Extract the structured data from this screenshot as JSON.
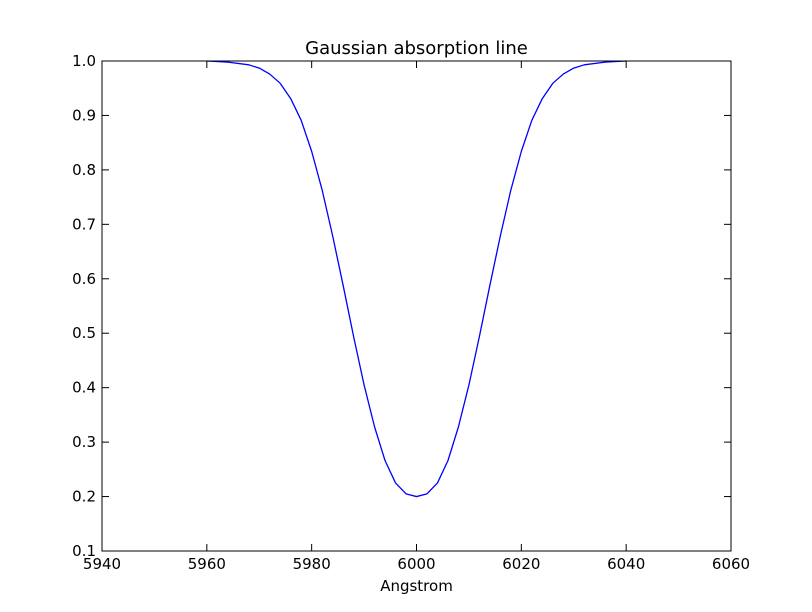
{
  "chart_data": {
    "type": "line",
    "title": "Gaussian absorption line",
    "xlabel": "Angstrom",
    "ylabel": "",
    "xlim": [
      5940,
      6060
    ],
    "ylim": [
      0.1,
      1.0
    ],
    "x_ticks": [
      5940,
      5960,
      5980,
      6000,
      6020,
      6040,
      6060
    ],
    "y_ticks": [
      0.1,
      0.2,
      0.3,
      0.4,
      0.5,
      0.6,
      0.7,
      0.8,
      0.9,
      1.0
    ],
    "x_tick_labels": [
      "5940",
      "5960",
      "5980",
      "6000",
      "6020",
      "6040",
      "6060"
    ],
    "y_tick_labels": [
      "0.1",
      "0.2",
      "0.3",
      "0.4",
      "0.5",
      "0.6",
      "0.7",
      "0.8",
      "0.9",
      "1.0"
    ],
    "grid": false,
    "line_color": "#0000ff",
    "series": [
      {
        "x": [
          5960,
          5964,
          5968,
          5970,
          5972,
          5974,
          5976,
          5978,
          5980,
          5982,
          5984,
          5986,
          5988,
          5990,
          5992,
          5994,
          5996,
          5998,
          6000,
          6002,
          6004,
          6006,
          6008,
          6010,
          6012,
          6014,
          6016,
          6018,
          6020,
          6022,
          6024,
          6026,
          6028,
          6030,
          6032,
          6036,
          6040
        ],
        "y": [
          1.0,
          0.998,
          0.993,
          0.987,
          0.976,
          0.959,
          0.931,
          0.891,
          0.834,
          0.763,
          0.679,
          0.588,
          0.494,
          0.405,
          0.328,
          0.266,
          0.225,
          0.205,
          0.2,
          0.205,
          0.225,
          0.266,
          0.328,
          0.405,
          0.494,
          0.588,
          0.679,
          0.763,
          0.834,
          0.891,
          0.931,
          0.959,
          0.976,
          0.987,
          0.993,
          0.998,
          1.0
        ]
      }
    ]
  }
}
